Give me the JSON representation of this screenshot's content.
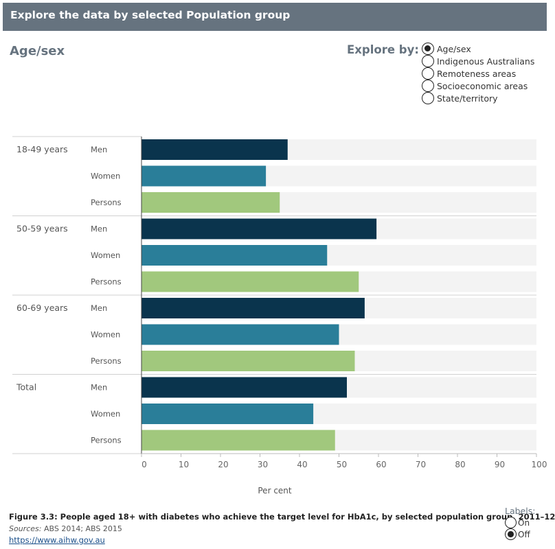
{
  "header": {
    "title": "Explore the data by selected Population group"
  },
  "section_title": "Age/sex",
  "explore": {
    "label": "Explore by:",
    "options": [
      {
        "label": "Age/sex",
        "checked": true
      },
      {
        "label": "Indigenous Australians",
        "checked": false
      },
      {
        "label": "Remoteness areas",
        "checked": false
      },
      {
        "label": "Socioeconomic areas",
        "checked": false
      },
      {
        "label": "State/territory",
        "checked": false
      }
    ]
  },
  "chart_data": {
    "type": "bar",
    "orientation": "horizontal",
    "groups": [
      {
        "label": "18-49 years",
        "rows": [
          {
            "label": "Men",
            "value": 37
          },
          {
            "label": "Women",
            "value": 31.5
          },
          {
            "label": "Persons",
            "value": 35
          }
        ]
      },
      {
        "label": "50-59 years",
        "rows": [
          {
            "label": "Men",
            "value": 59.5
          },
          {
            "label": "Women",
            "value": 47
          },
          {
            "label": "Persons",
            "value": 55
          }
        ]
      },
      {
        "label": "60-69 years",
        "rows": [
          {
            "label": "Men",
            "value": 56.5
          },
          {
            "label": "Women",
            "value": 50
          },
          {
            "label": "Persons",
            "value": 54
          }
        ]
      },
      {
        "label": "Total",
        "rows": [
          {
            "label": "Men",
            "value": 52
          },
          {
            "label": "Women",
            "value": 43.5
          },
          {
            "label": "Persons",
            "value": 49
          }
        ]
      }
    ],
    "xlim": [
      0,
      100
    ],
    "xticks": [
      0,
      10,
      20,
      30,
      40,
      50,
      60,
      70,
      80,
      90,
      100
    ],
    "xlabel": "Per cent",
    "colors": {
      "Men": "#0a344d",
      "Women": "#2a7e99",
      "Persons": "#a1c87d",
      "background_bar": "#f3f3f3"
    }
  },
  "caption": "Figure 3.3: People aged 18+ with diabetes who achieve the target level for HbA1c, by selected population group, 2011–12",
  "sources": {
    "prefix": "Sources:",
    "text": " ABS 2014; ABS 2015"
  },
  "url": "https://www.aihw.gov.au",
  "labels_toggle": {
    "title": "Labels:",
    "options": [
      {
        "label": "On",
        "checked": false
      },
      {
        "label": "Off",
        "checked": true
      }
    ]
  }
}
